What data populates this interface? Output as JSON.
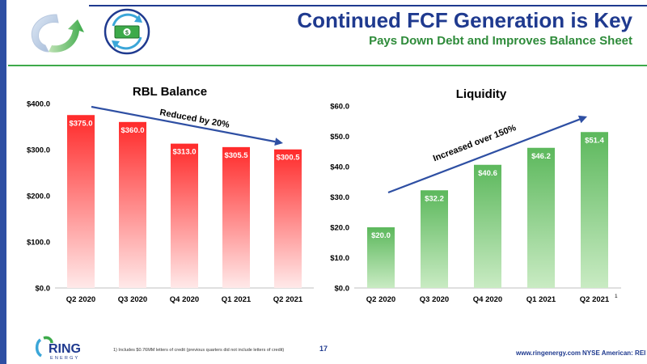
{
  "header": {
    "title": "Continued FCF Generation is Key",
    "subtitle": "Pays Down Debt and Improves Balance Sheet"
  },
  "chart_data": [
    {
      "type": "bar",
      "title": "RBL Balance",
      "categories": [
        "Q2 2020",
        "Q3 2020",
        "Q4 2020",
        "Q1 2021",
        "Q2 2021"
      ],
      "values": [
        375.0,
        360.0,
        313.0,
        305.5,
        300.5
      ],
      "data_labels": [
        "$375.0",
        "$360.0",
        "$313.0",
        "$305.5",
        "$300.5"
      ],
      "ylim": [
        0,
        400
      ],
      "yticks": [
        0,
        100,
        200,
        300,
        400
      ],
      "ytick_labels": [
        "$0.0",
        "$100.0",
        "$200.0",
        "$300.0",
        "$400.0"
      ],
      "annotation": "Reduced by 20%",
      "bar_color": "#ff1a1a",
      "grid": false
    },
    {
      "type": "bar",
      "title": "Liquidity",
      "categories": [
        "Q2 2020",
        "Q3 2020",
        "Q4 2020",
        "Q1 2021",
        "Q2 2021"
      ],
      "category_superscripts": [
        "",
        "",
        "",
        "",
        "1"
      ],
      "values": [
        20.0,
        32.2,
        40.6,
        46.2,
        51.4
      ],
      "data_labels": [
        "$20.0",
        "$32.2",
        "$40.6",
        "$46.2",
        "$51.4"
      ],
      "ylim": [
        0,
        60
      ],
      "yticks": [
        0,
        10,
        20,
        30,
        40,
        50,
        60
      ],
      "ytick_labels": [
        "$0.0",
        "$10.0",
        "$20.0",
        "$30.0",
        "$40.0",
        "$50.0",
        "$60.0"
      ],
      "annotation": "Increased over 150%",
      "bar_color": "#5cb85c",
      "grid": false
    }
  ],
  "footer": {
    "logo_text": "RING",
    "logo_subtext": "ENERGY",
    "footnote": "1) Includes $0.76MM letters of credit (previous quarters did not include letters of credit)",
    "page_number": "17",
    "website": "www.ringenergy.com",
    "ticker": "NYSE American: REI"
  },
  "colors": {
    "brand_blue": "#1f3a8f",
    "brand_green": "#3daa4a",
    "arrow_blue": "#2e4fa3"
  },
  "icons": {
    "header_logo": "circular-arrows-icon",
    "cash": "cash-cycle-icon"
  }
}
